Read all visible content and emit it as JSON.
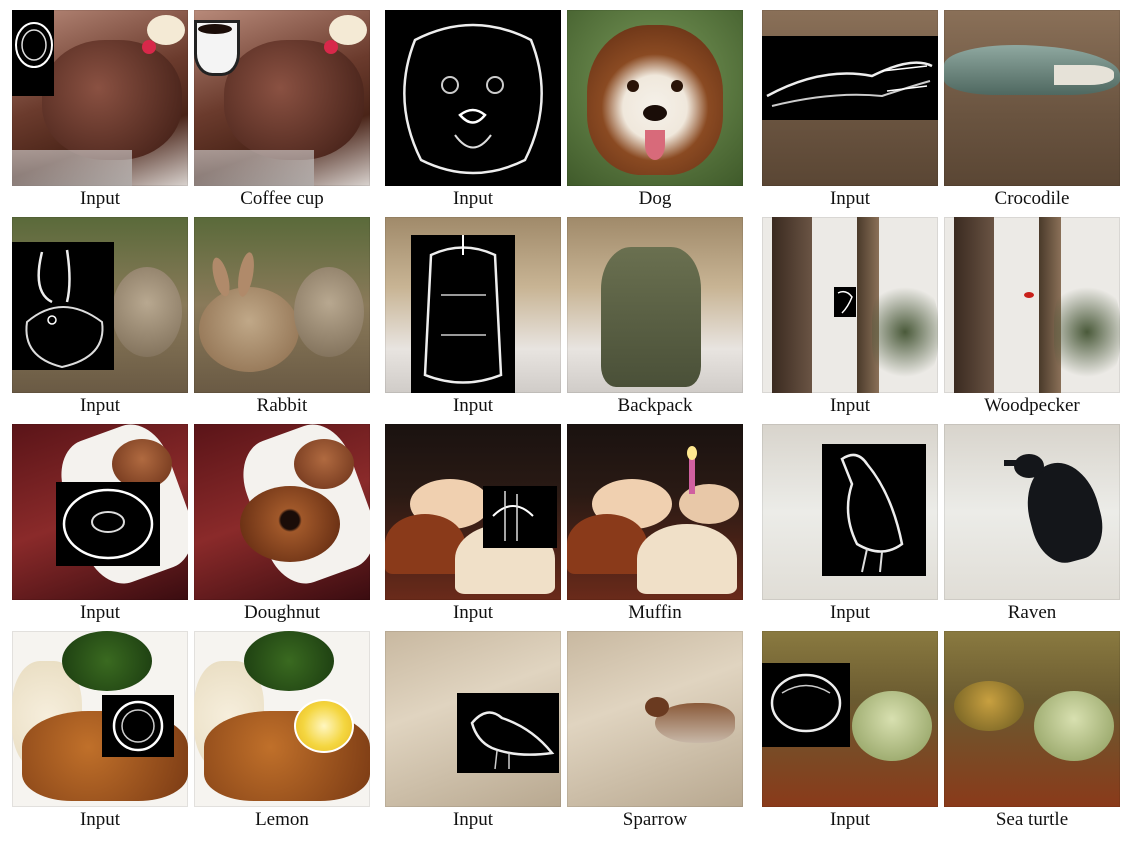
{
  "rows": [
    {
      "groups": [
        {
          "input_label": "Input",
          "class_label": "Coffee cup"
        },
        {
          "input_label": "Input",
          "class_label": "Dog"
        },
        {
          "input_label": "Input",
          "class_label": "Crocodile"
        }
      ]
    },
    {
      "groups": [
        {
          "input_label": "Input",
          "class_label": "Rabbit"
        },
        {
          "input_label": "Input",
          "class_label": "Backpack"
        },
        {
          "input_label": "Input",
          "class_label": "Woodpecker"
        }
      ]
    },
    {
      "groups": [
        {
          "input_label": "Input",
          "class_label": "Doughnut"
        },
        {
          "input_label": "Input",
          "class_label": "Muffin"
        },
        {
          "input_label": "Input",
          "class_label": "Raven"
        }
      ]
    },
    {
      "groups": [
        {
          "input_label": "Input",
          "class_label": "Lemon"
        },
        {
          "input_label": "Input",
          "class_label": "Sparrow"
        },
        {
          "input_label": "Input",
          "class_label": "Sea turtle"
        }
      ]
    }
  ]
}
